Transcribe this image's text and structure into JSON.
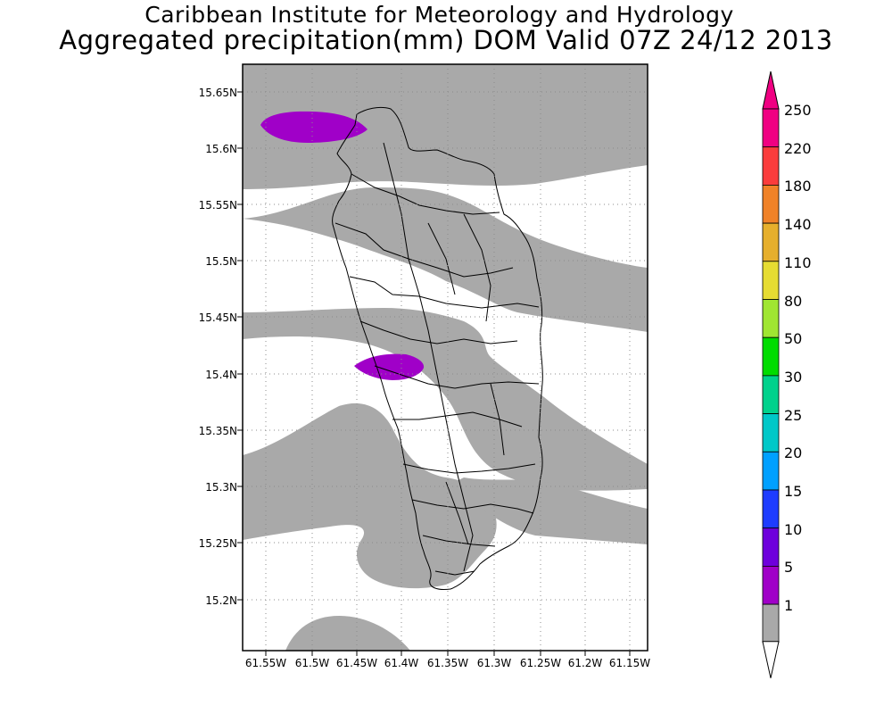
{
  "header": {
    "title_line1": "Caribbean Institute for Meteorology and Hydrology",
    "title_line2": "Aggregated precipitation(mm) DOM Valid 07Z 24/12 2013"
  },
  "map": {
    "region": "Dominica",
    "lat_ticks": [
      "15.65N",
      "15.6N",
      "15.55N",
      "15.5N",
      "15.45N",
      "15.4N",
      "15.35N",
      "15.3N",
      "15.25N",
      "15.2N"
    ],
    "lon_ticks": [
      "61.55W",
      "61.5W",
      "61.45W",
      "61.4W",
      "61.35W",
      "61.3W",
      "61.25W",
      "61.2W",
      "61.15W"
    ],
    "grid": true,
    "colors": {
      "precip_1_5": "#a9a9a9",
      "precip_5_10": "#a000c8",
      "land_outline": "#000000",
      "background": "#ffffff"
    }
  },
  "legend": {
    "labels": [
      "1",
      "5",
      "10",
      "15",
      "20",
      "25",
      "30",
      "50",
      "80",
      "110",
      "140",
      "180",
      "220",
      "250"
    ],
    "colors": [
      "#a9a9a9",
      "#a000c8",
      "#6e00dc",
      "#1e3cff",
      "#00a0ff",
      "#00c8c8",
      "#00d28c",
      "#00dc00",
      "#a0e632",
      "#e6dc32",
      "#e6af2d",
      "#f08228",
      "#fa3c3c",
      "#f00082"
    ],
    "under_color": "#ffffff",
    "over_color": "#f00082"
  }
}
